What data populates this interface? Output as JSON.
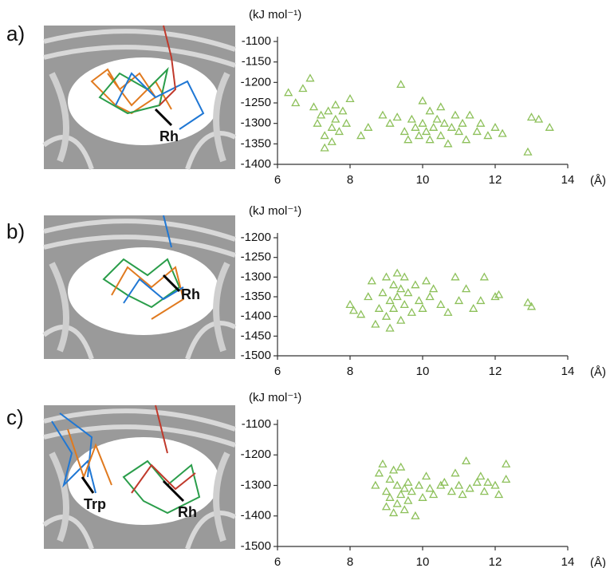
{
  "panel_labels": [
    "a)",
    "b)",
    "c)"
  ],
  "image_labels": [
    [
      "Rh"
    ],
    [
      "Rh"
    ],
    [
      "Trp",
      "Rh"
    ]
  ],
  "chart_data": [
    {
      "type": "scatter",
      "ylabel": "(kJ mol⁻¹)",
      "xlabel": "(Å)",
      "color": "#8dc05a",
      "marker": "triangle",
      "xlim": [
        6,
        14
      ],
      "xticks": [
        6,
        8,
        10,
        12,
        14
      ],
      "ylim": [
        -1400,
        -1100
      ],
      "yticks": [
        -1100,
        -1150,
        -1200,
        -1250,
        -1300,
        -1350,
        -1400
      ],
      "grid": false,
      "x": [
        6.3,
        6.5,
        6.7,
        6.9,
        7.0,
        7.1,
        7.2,
        7.3,
        7.3,
        7.4,
        7.5,
        7.5,
        7.6,
        7.6,
        7.7,
        7.8,
        7.9,
        8.0,
        8.3,
        8.5,
        8.9,
        9.1,
        9.3,
        9.4,
        9.5,
        9.6,
        9.7,
        9.8,
        9.9,
        10.0,
        10.0,
        10.1,
        10.2,
        10.2,
        10.3,
        10.4,
        10.5,
        10.5,
        10.6,
        10.7,
        10.8,
        10.9,
        11.0,
        11.1,
        11.2,
        11.3,
        11.5,
        11.6,
        11.8,
        12.0,
        12.2,
        12.9,
        13.0,
        13.2,
        13.5
      ],
      "values": [
        -1225,
        -1250,
        -1215,
        -1190,
        -1260,
        -1300,
        -1280,
        -1330,
        -1360,
        -1270,
        -1310,
        -1345,
        -1255,
        -1290,
        -1320,
        -1270,
        -1300,
        -1240,
        -1330,
        -1310,
        -1280,
        -1300,
        -1285,
        -1205,
        -1320,
        -1340,
        -1290,
        -1310,
        -1330,
        -1245,
        -1300,
        -1320,
        -1270,
        -1340,
        -1310,
        -1290,
        -1260,
        -1330,
        -1300,
        -1350,
        -1310,
        -1280,
        -1320,
        -1300,
        -1340,
        -1280,
        -1320,
        -1300,
        -1330,
        -1310,
        -1325,
        -1370,
        -1285,
        -1290,
        -1310
      ]
    },
    {
      "type": "scatter",
      "ylabel": "(kJ mol⁻¹)",
      "xlabel": "(Å)",
      "color": "#8dc05a",
      "marker": "triangle",
      "xlim": [
        6,
        14
      ],
      "xticks": [
        6,
        8,
        10,
        12,
        14
      ],
      "ylim": [
        -1500,
        -1200
      ],
      "yticks": [
        -1200,
        -1250,
        -1300,
        -1350,
        -1400,
        -1450,
        -1500
      ],
      "grid": false,
      "x": [
        8.0,
        8.1,
        8.3,
        8.5,
        8.6,
        8.7,
        8.8,
        8.9,
        9.0,
        9.0,
        9.1,
        9.1,
        9.2,
        9.2,
        9.3,
        9.3,
        9.4,
        9.4,
        9.5,
        9.5,
        9.6,
        9.7,
        9.8,
        9.9,
        10.0,
        10.1,
        10.2,
        10.3,
        10.5,
        10.7,
        10.9,
        11.0,
        11.2,
        11.4,
        11.6,
        11.7,
        12.0,
        12.1,
        12.9,
        13.0
      ],
      "values": [
        -1370,
        -1385,
        -1395,
        -1350,
        -1310,
        -1420,
        -1380,
        -1340,
        -1300,
        -1400,
        -1360,
        -1430,
        -1320,
        -1380,
        -1290,
        -1350,
        -1410,
        -1330,
        -1300,
        -1370,
        -1340,
        -1390,
        -1320,
        -1360,
        -1380,
        -1310,
        -1350,
        -1330,
        -1370,
        -1390,
        -1300,
        -1360,
        -1330,
        -1380,
        -1360,
        -1300,
        -1350,
        -1345,
        -1365,
        -1375
      ]
    },
    {
      "type": "scatter",
      "ylabel": "(kJ mol⁻¹)",
      "xlabel": "(Å)",
      "color": "#8dc05a",
      "marker": "triangle",
      "xlim": [
        6,
        14
      ],
      "xticks": [
        6,
        8,
        10,
        12,
        14
      ],
      "ylim": [
        -1500,
        -1100
      ],
      "yticks": [
        -1100,
        -1200,
        -1300,
        -1400,
        -1500
      ],
      "grid": false,
      "x": [
        8.7,
        8.8,
        8.9,
        9.0,
        9.0,
        9.1,
        9.1,
        9.2,
        9.2,
        9.3,
        9.3,
        9.4,
        9.4,
        9.5,
        9.5,
        9.6,
        9.6,
        9.7,
        9.8,
        9.9,
        10.0,
        10.1,
        10.2,
        10.3,
        10.5,
        10.6,
        10.8,
        10.9,
        11.0,
        11.1,
        11.2,
        11.3,
        11.5,
        11.6,
        11.7,
        11.8,
        12.0,
        12.1,
        12.3,
        12.3
      ],
      "values": [
        -1300,
        -1260,
        -1230,
        -1320,
        -1370,
        -1280,
        -1340,
        -1250,
        -1390,
        -1300,
        -1360,
        -1240,
        -1330,
        -1310,
        -1380,
        -1290,
        -1350,
        -1320,
        -1400,
        -1300,
        -1340,
        -1270,
        -1310,
        -1330,
        -1300,
        -1290,
        -1320,
        -1260,
        -1300,
        -1330,
        -1220,
        -1310,
        -1290,
        -1270,
        -1320,
        -1290,
        -1300,
        -1330,
        -1230,
        -1280
      ]
    }
  ]
}
